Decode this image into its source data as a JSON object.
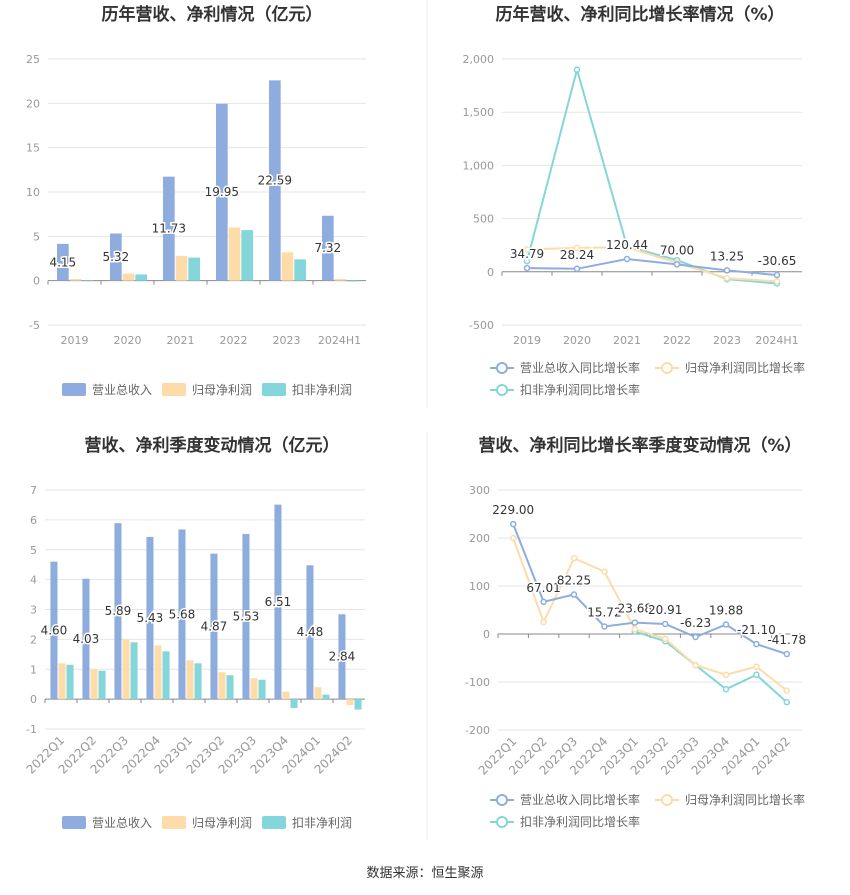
{
  "source_text": "数据来源：恒生聚源",
  "colors": {
    "revenue": "#8eadde",
    "net_profit": "#fddcaa",
    "deducted_profit": "#84d6da",
    "grid": "#e6e6e6",
    "axis_text": "#999999",
    "label_text": "#333333",
    "title_text": "#333333"
  },
  "chart_data": [
    {
      "id": "annual-bars",
      "type": "bar",
      "title": "历年营收、净利情况（亿元）",
      "categories": [
        "2019",
        "2020",
        "2021",
        "2022",
        "2023",
        "2024H1"
      ],
      "ylim": [
        -5,
        25
      ],
      "yticks": [
        -5,
        0,
        5,
        10,
        15,
        20,
        25
      ],
      "grid": true,
      "legend_position": "bottom",
      "series": [
        {
          "name": "营业总收入",
          "color_key": "revenue",
          "values": [
            4.15,
            5.32,
            11.73,
            19.95,
            22.59,
            7.32
          ],
          "labels": [
            "4.15",
            "5.32",
            "11.73",
            "19.95",
            "22.59",
            "7.32"
          ]
        },
        {
          "name": "归母净利润",
          "color_key": "net_profit",
          "values": [
            0.2,
            0.8,
            2.8,
            6.0,
            3.2,
            0.2
          ]
        },
        {
          "name": "扣非净利润",
          "color_key": "deducted_profit",
          "values": [
            0.0,
            0.7,
            2.6,
            5.7,
            2.4,
            -0.1
          ]
        }
      ]
    },
    {
      "id": "annual-growth",
      "type": "line",
      "title": "历年营收、净利同比增长率情况（%）",
      "categories": [
        "2019",
        "2020",
        "2021",
        "2022",
        "2023",
        "2024H1"
      ],
      "ylim": [
        -500,
        2000
      ],
      "yticks": [
        -500,
        0,
        500,
        1000,
        1500,
        2000
      ],
      "ytick_labels": [
        "-500",
        "0",
        "500",
        "1,000",
        "1,500",
        "2,000"
      ],
      "grid": true,
      "legend_position": "bottom",
      "series": [
        {
          "name": "营业总收入同比增长率",
          "color_key": "revenue",
          "values": [
            34.79,
            28.24,
            120.44,
            70.0,
            13.25,
            -30.65
          ],
          "labels": [
            "34.79",
            "28.24",
            "120.44",
            "70.00",
            "13.25",
            "-30.65"
          ]
        },
        {
          "name": "归母净利润同比增长率",
          "color_key": "net_profit",
          "values": [
            210,
            225,
            230,
            85,
            -60,
            -90
          ]
        },
        {
          "name": "扣非净利润同比增长率",
          "color_key": "deducted_profit",
          "values": [
            100,
            1900,
            240,
            110,
            -70,
            -110
          ]
        }
      ]
    },
    {
      "id": "quarterly-bars",
      "type": "bar",
      "title": "营收、净利季度变动情况（亿元）",
      "categories": [
        "2022Q1",
        "2022Q2",
        "2022Q3",
        "2022Q4",
        "2023Q1",
        "2023Q2",
        "2023Q3",
        "2023Q4",
        "2024Q1",
        "2024Q2"
      ],
      "ylim": [
        -1,
        7
      ],
      "yticks": [
        -1,
        0,
        1,
        2,
        3,
        4,
        5,
        6,
        7
      ],
      "grid": true,
      "legend_position": "bottom",
      "series": [
        {
          "name": "营业总收入",
          "color_key": "revenue",
          "values": [
            4.6,
            4.03,
            5.89,
            5.43,
            5.68,
            4.87,
            5.53,
            6.51,
            4.48,
            2.84
          ],
          "labels": [
            "4.60",
            "4.03",
            "5.89",
            "5.43",
            "5.68",
            "4.87",
            "5.53",
            "6.51",
            "4.48",
            "2.84"
          ]
        },
        {
          "name": "归母净利润",
          "color_key": "net_profit",
          "values": [
            1.2,
            1.0,
            2.0,
            1.8,
            1.3,
            0.9,
            0.7,
            0.25,
            0.4,
            -0.2
          ]
        },
        {
          "name": "扣非净利润",
          "color_key": "deducted_profit",
          "values": [
            1.15,
            0.95,
            1.9,
            1.6,
            1.2,
            0.8,
            0.65,
            -0.3,
            0.15,
            -0.35
          ]
        }
      ]
    },
    {
      "id": "quarterly-growth",
      "type": "line",
      "title": "营收、净利同比增长率季度变动情况（%）",
      "categories": [
        "2022Q1",
        "2022Q2",
        "2022Q3",
        "2022Q4",
        "2023Q1",
        "2023Q2",
        "2023Q3",
        "2023Q4",
        "2024Q1",
        "2024Q2"
      ],
      "ylim": [
        -200,
        300
      ],
      "yticks": [
        -200,
        -100,
        0,
        100,
        200,
        300
      ],
      "grid": true,
      "legend_position": "bottom",
      "series": [
        {
          "name": "营业总收入同比增长率",
          "color_key": "revenue",
          "values": [
            229.0,
            67.01,
            82.25,
            15.72,
            23.68,
            20.91,
            -6.23,
            19.88,
            -21.1,
            -41.78
          ],
          "labels": [
            "229.00",
            "67.01",
            "82.25",
            "15.72",
            "23.68",
            "20.91",
            "-6.23",
            "19.88",
            "-21.10",
            "-41.78"
          ]
        },
        {
          "name": "归母净利润同比增长率",
          "color_key": "net_profit",
          "values": [
            200,
            25,
            158,
            130,
            10,
            -10,
            -65,
            -85,
            -68,
            -118
          ]
        },
        {
          "name": "扣非净利润同比增长率",
          "color_key": "deducted_profit",
          "values": [
            null,
            null,
            null,
            null,
            5,
            -15,
            -65,
            -115,
            -85,
            -142
          ]
        }
      ]
    }
  ]
}
